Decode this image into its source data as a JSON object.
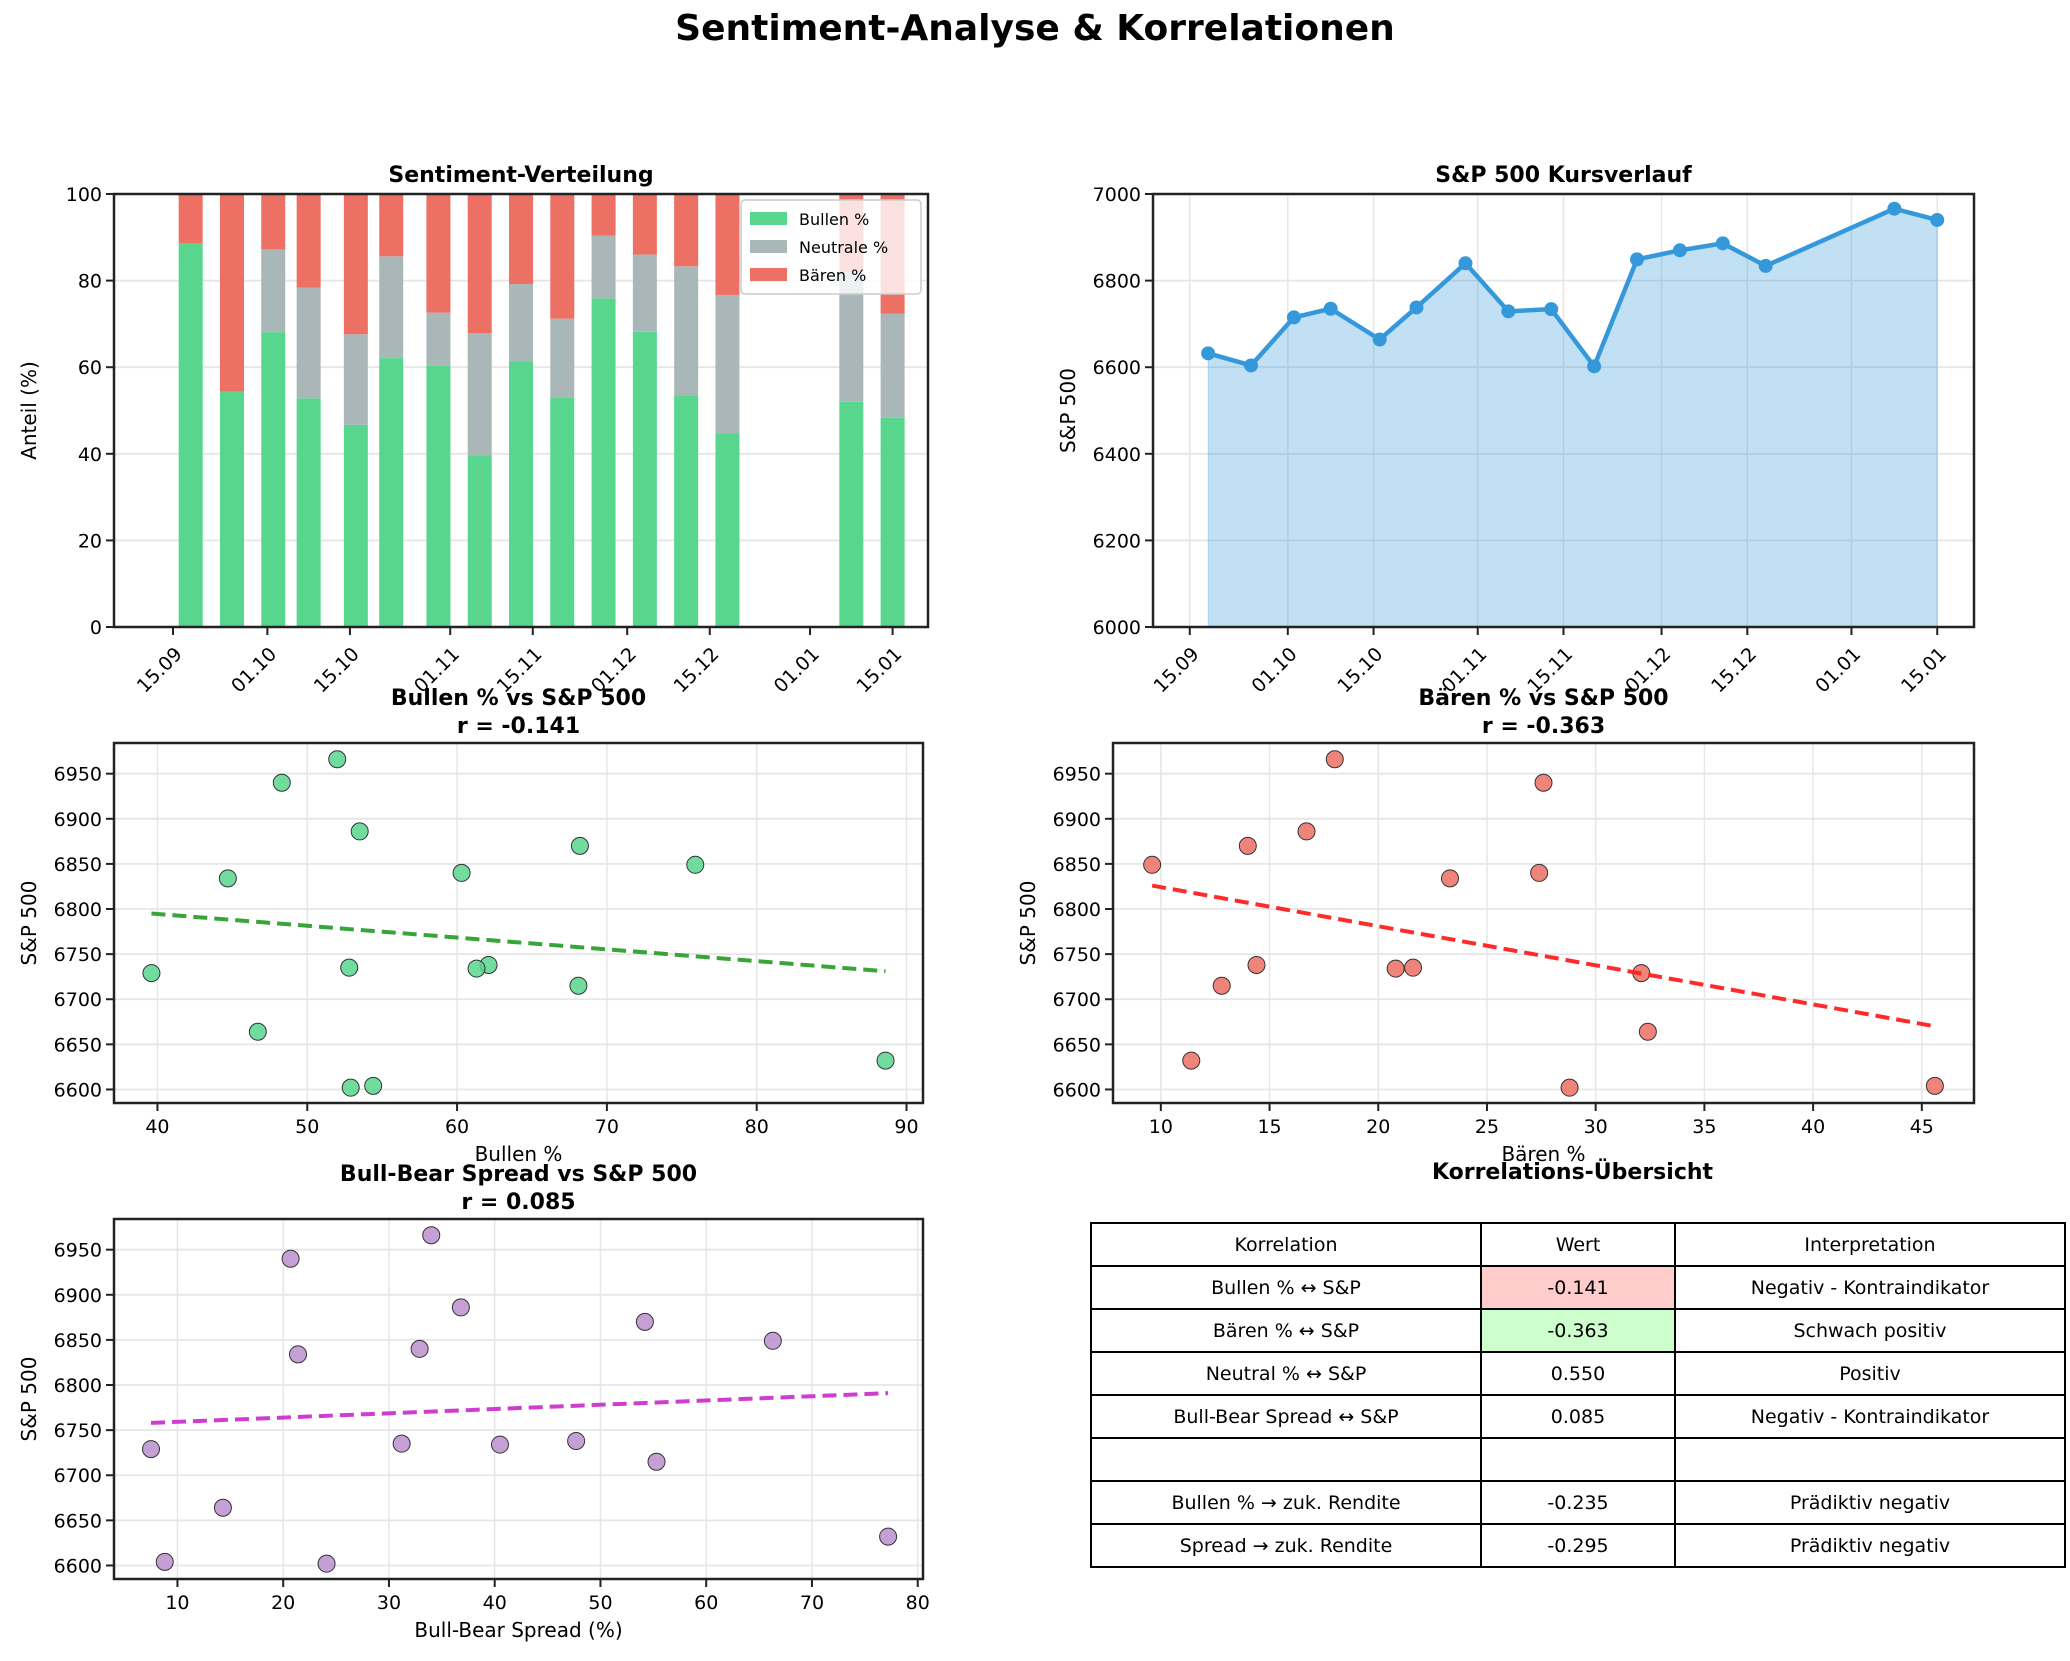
{
  "figure": {
    "suptitle": "Sentiment-Analyse & Korrelationen",
    "colors": {
      "bull": "#58d68d",
      "neutral": "#aab7b8",
      "bear": "#ec7063",
      "sp_line": "#3498db",
      "sp_fill": "#c0dff3",
      "bull_scatter": "#58d68d",
      "bear_scatter": "#ec7063",
      "spread_scatter": "#bb8fce",
      "bull_trend": "#2ca02c",
      "bear_trend": "#ff2020",
      "spread_trend": "#cc33cc",
      "neg_cell": "#ffcccc",
      "pos_cell": "#ccffcc"
    }
  },
  "chart_data": [
    {
      "id": "sentiment",
      "type": "bar",
      "stacked": true,
      "title": "Sentiment-Verteilung",
      "xlabel": "",
      "ylabel": "Anteil (%)",
      "ylim": [
        0,
        100
      ],
      "yticks": [
        0,
        20,
        40,
        60,
        80,
        100
      ],
      "xlim_days": [
        -10,
        128
      ],
      "xticks": [
        {
          "label": "15.09",
          "day": 0
        },
        {
          "label": "01.10",
          "day": 16
        },
        {
          "label": "15.10",
          "day": 30
        },
        {
          "label": "01.11",
          "day": 47
        },
        {
          "label": "15.11",
          "day": 61
        },
        {
          "label": "01.12",
          "day": 77
        },
        {
          "label": "15.12",
          "day": 91
        },
        {
          "label": "01.01",
          "day": 108
        },
        {
          "label": "15.01",
          "day": 122
        }
      ],
      "dates": [
        "18.09",
        "25.09",
        "02.10",
        "08.10",
        "16.10",
        "22.10",
        "30.10",
        "06.11",
        "13.11",
        "20.11",
        "27.11",
        "04.12",
        "11.12",
        "18.12",
        "08.01",
        "15.01"
      ],
      "days": [
        3,
        10,
        17,
        23,
        31,
        37,
        45,
        52,
        59,
        66,
        73,
        80,
        87,
        94,
        115,
        122
      ],
      "legend": {
        "position": "upper-right",
        "entries": [
          "Bullen %",
          "Neutrale %",
          "Bären %"
        ]
      },
      "grid": "y",
      "series": [
        {
          "name": "Bullen %",
          "values": [
            88.6,
            54.4,
            68.1,
            52.8,
            46.7,
            62.1,
            60.3,
            39.6,
            61.3,
            52.9,
            75.9,
            68.2,
            53.5,
            44.7,
            52.0,
            48.3
          ]
        },
        {
          "name": "Neutrale %",
          "values": [
            0.0,
            0.0,
            19.1,
            25.6,
            20.9,
            23.5,
            12.3,
            28.3,
            17.9,
            18.3,
            14.5,
            17.8,
            29.8,
            32.0,
            30.0,
            24.1
          ]
        },
        {
          "name": "Bären %",
          "values": [
            11.4,
            45.6,
            12.8,
            21.6,
            32.4,
            14.4,
            27.4,
            32.1,
            20.8,
            28.8,
            9.6,
            14.0,
            16.7,
            23.3,
            18.0,
            27.6
          ]
        }
      ]
    },
    {
      "id": "sp500",
      "type": "area",
      "title": "S&P 500 Kursverlauf",
      "xlabel": "",
      "ylabel": "S&P 500",
      "ylim": [
        6000,
        7000
      ],
      "yticks": [
        6000,
        6200,
        6400,
        6600,
        6800,
        7000
      ],
      "xlim_days": [
        -6,
        128
      ],
      "xticks": [
        {
          "label": "15.09",
          "day": 0
        },
        {
          "label": "01.10",
          "day": 16
        },
        {
          "label": "15.10",
          "day": 30
        },
        {
          "label": "01.11",
          "day": 47
        },
        {
          "label": "15.11",
          "day": 61
        },
        {
          "label": "01.12",
          "day": 77
        },
        {
          "label": "15.12",
          "day": 91
        },
        {
          "label": "01.01",
          "day": 108
        },
        {
          "label": "15.01",
          "day": 122
        }
      ],
      "grid": "both",
      "dates": [
        "18.09",
        "25.09",
        "02.10",
        "08.10",
        "16.10",
        "22.10",
        "30.10",
        "06.11",
        "13.11",
        "20.11",
        "27.11",
        "04.12",
        "11.12",
        "18.12",
        "08.01",
        "15.01"
      ],
      "days": [
        3,
        10,
        17,
        23,
        31,
        37,
        45,
        52,
        59,
        66,
        73,
        80,
        87,
        94,
        115,
        122
      ],
      "values": [
        6632,
        6604,
        6715,
        6735,
        6664,
        6738,
        6840,
        6729,
        6734,
        6602,
        6849,
        6870,
        6886,
        6834,
        6966,
        6940
      ]
    },
    {
      "id": "bull_scatter",
      "type": "scatter",
      "title": "Bullen % vs S&P 500",
      "subtitle": "r = -0.141",
      "xlabel": "Bullen %",
      "ylabel": "S&P 500",
      "xlim": [
        37.1,
        91.1
      ],
      "ylim": [
        6585,
        6984
      ],
      "xticks": [
        40,
        50,
        60,
        70,
        80,
        90
      ],
      "yticks": [
        6600,
        6650,
        6700,
        6750,
        6800,
        6850,
        6900,
        6950
      ],
      "grid": "both",
      "x": [
        88.6,
        54.4,
        68.1,
        52.8,
        46.7,
        62.1,
        60.3,
        39.6,
        61.3,
        52.9,
        75.9,
        68.2,
        53.5,
        44.7,
        52.0,
        48.3
      ],
      "y": [
        6632,
        6604,
        6715,
        6735,
        6664,
        6738,
        6840,
        6729,
        6734,
        6602,
        6849,
        6870,
        6886,
        6834,
        6966,
        6940
      ],
      "trend": {
        "x": [
          39.6,
          88.6
        ],
        "y": [
          6795,
          6731
        ]
      }
    },
    {
      "id": "bear_scatter",
      "type": "scatter",
      "title": "Bären % vs S&P 500",
      "subtitle": "r = -0.363",
      "xlabel": "Bären %",
      "ylabel": "S&P 500",
      "xlim": [
        7.8,
        47.4
      ],
      "ylim": [
        6585,
        6984
      ],
      "xticks": [
        10,
        15,
        20,
        25,
        30,
        35,
        40,
        45
      ],
      "yticks": [
        6600,
        6650,
        6700,
        6750,
        6800,
        6850,
        6900,
        6950
      ],
      "grid": "both",
      "x": [
        11.4,
        45.6,
        12.8,
        21.6,
        32.4,
        14.4,
        27.4,
        32.1,
        20.8,
        28.8,
        9.6,
        14.0,
        16.7,
        23.3,
        18.0,
        27.6
      ],
      "y": [
        6632,
        6604,
        6715,
        6735,
        6664,
        6738,
        6840,
        6729,
        6734,
        6602,
        6849,
        6870,
        6886,
        6834,
        6966,
        6940
      ],
      "trend": {
        "x": [
          9.6,
          45.6
        ],
        "y": [
          6826,
          6670
        ]
      }
    },
    {
      "id": "spread_scatter",
      "type": "scatter",
      "title": "Bull-Bear Spread vs S&P 500",
      "subtitle": "r = 0.085",
      "xlabel": "Bull-Bear Spread (%)",
      "ylabel": "S&P 500",
      "xlim": [
        4.0,
        80.5
      ],
      "ylim": [
        6585,
        6984
      ],
      "xticks": [
        10,
        20,
        30,
        40,
        50,
        60,
        70,
        80
      ],
      "yticks": [
        6600,
        6650,
        6700,
        6750,
        6800,
        6850,
        6900,
        6950
      ],
      "grid": "both",
      "x": [
        77.2,
        8.8,
        55.3,
        31.2,
        14.3,
        47.7,
        32.9,
        7.5,
        40.5,
        24.1,
        66.3,
        54.2,
        36.8,
        21.4,
        34.0,
        20.7
      ],
      "y": [
        6632,
        6604,
        6715,
        6735,
        6664,
        6738,
        6840,
        6729,
        6734,
        6602,
        6849,
        6870,
        6886,
        6834,
        6966,
        6940
      ],
      "trend": {
        "x": [
          7.5,
          77.2
        ],
        "y": [
          6758,
          6791
        ]
      }
    }
  ],
  "table": {
    "title": "Korrelations-Übersicht",
    "header": [
      "Korrelation",
      "Wert",
      "Interpretation"
    ],
    "rows": [
      {
        "label": "Bullen % ↔ S&P",
        "value": "-0.141",
        "interpretation": "Negativ - Kontraindikator",
        "highlight": "neg"
      },
      {
        "label": "Bären % ↔ S&P",
        "value": "-0.363",
        "interpretation": "Schwach positiv",
        "highlight": "pos"
      },
      {
        "label": "Neutral % ↔ S&P",
        "value": "0.550",
        "interpretation": "Positiv",
        "highlight": ""
      },
      {
        "label": "Bull-Bear Spread ↔ S&P",
        "value": "0.085",
        "interpretation": "Negativ - Kontraindikator",
        "highlight": ""
      },
      {
        "label": "",
        "value": "",
        "interpretation": "",
        "highlight": ""
      },
      {
        "label": "Bullen % → zuk. Rendite",
        "value": "-0.235",
        "interpretation": "Prädiktiv negativ",
        "highlight": ""
      },
      {
        "label": "Spread → zuk. Rendite",
        "value": "-0.295",
        "interpretation": "Prädiktiv negativ",
        "highlight": ""
      }
    ]
  }
}
